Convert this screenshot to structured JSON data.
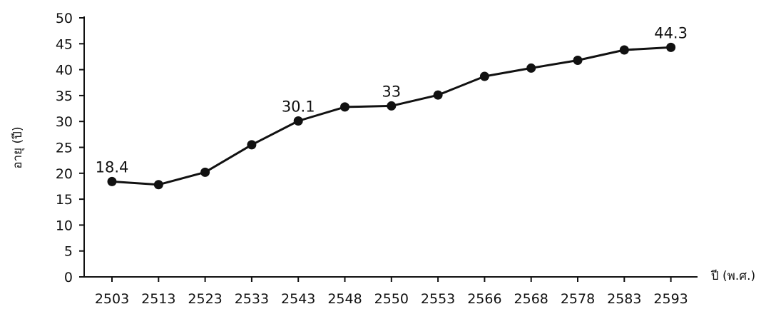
{
  "chart_data": {
    "type": "line",
    "title": "",
    "xlabel": "ปี (พ.ศ.)",
    "ylabel": "อายุ (ปี)",
    "categories": [
      "2503",
      "2513",
      "2523",
      "2533",
      "2543",
      "2548",
      "2550",
      "2553",
      "2566",
      "2568",
      "2578",
      "2583",
      "2593"
    ],
    "series": [
      {
        "values": [
          18.4,
          17.8,
          20.2,
          25.5,
          30.1,
          32.8,
          33,
          35.1,
          38.7,
          40.3,
          41.8,
          43.8,
          44.3
        ]
      }
    ],
    "data_labels": [
      {
        "index": 0,
        "text": "18.4"
      },
      {
        "index": 4,
        "text": "30.1"
      },
      {
        "index": 6,
        "text": "33"
      },
      {
        "index": 12,
        "text": "44.3"
      }
    ],
    "yticks": [
      "0",
      "5",
      "10",
      "15",
      "20",
      "25",
      "30",
      "35",
      "40",
      "45",
      "50"
    ],
    "ylim": [
      0,
      50
    ],
    "grid": false,
    "legend": "none",
    "colors": {
      "line": "#111111",
      "marker": "#111111",
      "axis": "#111111"
    }
  }
}
